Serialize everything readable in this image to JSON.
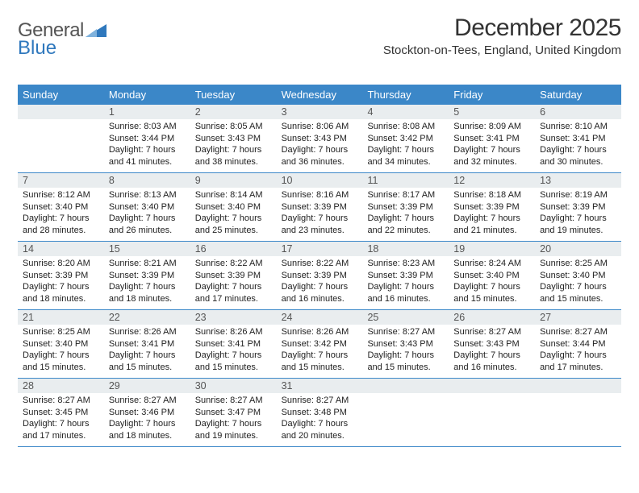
{
  "logo": {
    "word1": "General",
    "word2": "Blue"
  },
  "title": "December 2025",
  "location": "Stockton-on-Tees, England, United Kingdom",
  "colors": {
    "header_bg": "#3b87c8",
    "header_text": "#ffffff",
    "daynum_bg": "#e9edef",
    "week_border": "#3b87c8",
    "body_text": "#222222",
    "logo_gray": "#555555",
    "logo_blue": "#2f78bd",
    "logo_triangle": "#2f78bd",
    "page_bg": "#ffffff"
  },
  "weekdays": [
    "Sunday",
    "Monday",
    "Tuesday",
    "Wednesday",
    "Thursday",
    "Friday",
    "Saturday"
  ],
  "weeks": [
    [
      null,
      {
        "n": "1",
        "sunrise": "Sunrise: 8:03 AM",
        "sunset": "Sunset: 3:44 PM",
        "daylight": "Daylight: 7 hours and 41 minutes."
      },
      {
        "n": "2",
        "sunrise": "Sunrise: 8:05 AM",
        "sunset": "Sunset: 3:43 PM",
        "daylight": "Daylight: 7 hours and 38 minutes."
      },
      {
        "n": "3",
        "sunrise": "Sunrise: 8:06 AM",
        "sunset": "Sunset: 3:43 PM",
        "daylight": "Daylight: 7 hours and 36 minutes."
      },
      {
        "n": "4",
        "sunrise": "Sunrise: 8:08 AM",
        "sunset": "Sunset: 3:42 PM",
        "daylight": "Daylight: 7 hours and 34 minutes."
      },
      {
        "n": "5",
        "sunrise": "Sunrise: 8:09 AM",
        "sunset": "Sunset: 3:41 PM",
        "daylight": "Daylight: 7 hours and 32 minutes."
      },
      {
        "n": "6",
        "sunrise": "Sunrise: 8:10 AM",
        "sunset": "Sunset: 3:41 PM",
        "daylight": "Daylight: 7 hours and 30 minutes."
      }
    ],
    [
      {
        "n": "7",
        "sunrise": "Sunrise: 8:12 AM",
        "sunset": "Sunset: 3:40 PM",
        "daylight": "Daylight: 7 hours and 28 minutes."
      },
      {
        "n": "8",
        "sunrise": "Sunrise: 8:13 AM",
        "sunset": "Sunset: 3:40 PM",
        "daylight": "Daylight: 7 hours and 26 minutes."
      },
      {
        "n": "9",
        "sunrise": "Sunrise: 8:14 AM",
        "sunset": "Sunset: 3:40 PM",
        "daylight": "Daylight: 7 hours and 25 minutes."
      },
      {
        "n": "10",
        "sunrise": "Sunrise: 8:16 AM",
        "sunset": "Sunset: 3:39 PM",
        "daylight": "Daylight: 7 hours and 23 minutes."
      },
      {
        "n": "11",
        "sunrise": "Sunrise: 8:17 AM",
        "sunset": "Sunset: 3:39 PM",
        "daylight": "Daylight: 7 hours and 22 minutes."
      },
      {
        "n": "12",
        "sunrise": "Sunrise: 8:18 AM",
        "sunset": "Sunset: 3:39 PM",
        "daylight": "Daylight: 7 hours and 21 minutes."
      },
      {
        "n": "13",
        "sunrise": "Sunrise: 8:19 AM",
        "sunset": "Sunset: 3:39 PM",
        "daylight": "Daylight: 7 hours and 19 minutes."
      }
    ],
    [
      {
        "n": "14",
        "sunrise": "Sunrise: 8:20 AM",
        "sunset": "Sunset: 3:39 PM",
        "daylight": "Daylight: 7 hours and 18 minutes."
      },
      {
        "n": "15",
        "sunrise": "Sunrise: 8:21 AM",
        "sunset": "Sunset: 3:39 PM",
        "daylight": "Daylight: 7 hours and 18 minutes."
      },
      {
        "n": "16",
        "sunrise": "Sunrise: 8:22 AM",
        "sunset": "Sunset: 3:39 PM",
        "daylight": "Daylight: 7 hours and 17 minutes."
      },
      {
        "n": "17",
        "sunrise": "Sunrise: 8:22 AM",
        "sunset": "Sunset: 3:39 PM",
        "daylight": "Daylight: 7 hours and 16 minutes."
      },
      {
        "n": "18",
        "sunrise": "Sunrise: 8:23 AM",
        "sunset": "Sunset: 3:39 PM",
        "daylight": "Daylight: 7 hours and 16 minutes."
      },
      {
        "n": "19",
        "sunrise": "Sunrise: 8:24 AM",
        "sunset": "Sunset: 3:40 PM",
        "daylight": "Daylight: 7 hours and 15 minutes."
      },
      {
        "n": "20",
        "sunrise": "Sunrise: 8:25 AM",
        "sunset": "Sunset: 3:40 PM",
        "daylight": "Daylight: 7 hours and 15 minutes."
      }
    ],
    [
      {
        "n": "21",
        "sunrise": "Sunrise: 8:25 AM",
        "sunset": "Sunset: 3:40 PM",
        "daylight": "Daylight: 7 hours and 15 minutes."
      },
      {
        "n": "22",
        "sunrise": "Sunrise: 8:26 AM",
        "sunset": "Sunset: 3:41 PM",
        "daylight": "Daylight: 7 hours and 15 minutes."
      },
      {
        "n": "23",
        "sunrise": "Sunrise: 8:26 AM",
        "sunset": "Sunset: 3:41 PM",
        "daylight": "Daylight: 7 hours and 15 minutes."
      },
      {
        "n": "24",
        "sunrise": "Sunrise: 8:26 AM",
        "sunset": "Sunset: 3:42 PM",
        "daylight": "Daylight: 7 hours and 15 minutes."
      },
      {
        "n": "25",
        "sunrise": "Sunrise: 8:27 AM",
        "sunset": "Sunset: 3:43 PM",
        "daylight": "Daylight: 7 hours and 15 minutes."
      },
      {
        "n": "26",
        "sunrise": "Sunrise: 8:27 AM",
        "sunset": "Sunset: 3:43 PM",
        "daylight": "Daylight: 7 hours and 16 minutes."
      },
      {
        "n": "27",
        "sunrise": "Sunrise: 8:27 AM",
        "sunset": "Sunset: 3:44 PM",
        "daylight": "Daylight: 7 hours and 17 minutes."
      }
    ],
    [
      {
        "n": "28",
        "sunrise": "Sunrise: 8:27 AM",
        "sunset": "Sunset: 3:45 PM",
        "daylight": "Daylight: 7 hours and 17 minutes."
      },
      {
        "n": "29",
        "sunrise": "Sunrise: 8:27 AM",
        "sunset": "Sunset: 3:46 PM",
        "daylight": "Daylight: 7 hours and 18 minutes."
      },
      {
        "n": "30",
        "sunrise": "Sunrise: 8:27 AM",
        "sunset": "Sunset: 3:47 PM",
        "daylight": "Daylight: 7 hours and 19 minutes."
      },
      {
        "n": "31",
        "sunrise": "Sunrise: 8:27 AM",
        "sunset": "Sunset: 3:48 PM",
        "daylight": "Daylight: 7 hours and 20 minutes."
      },
      null,
      null,
      null
    ]
  ]
}
